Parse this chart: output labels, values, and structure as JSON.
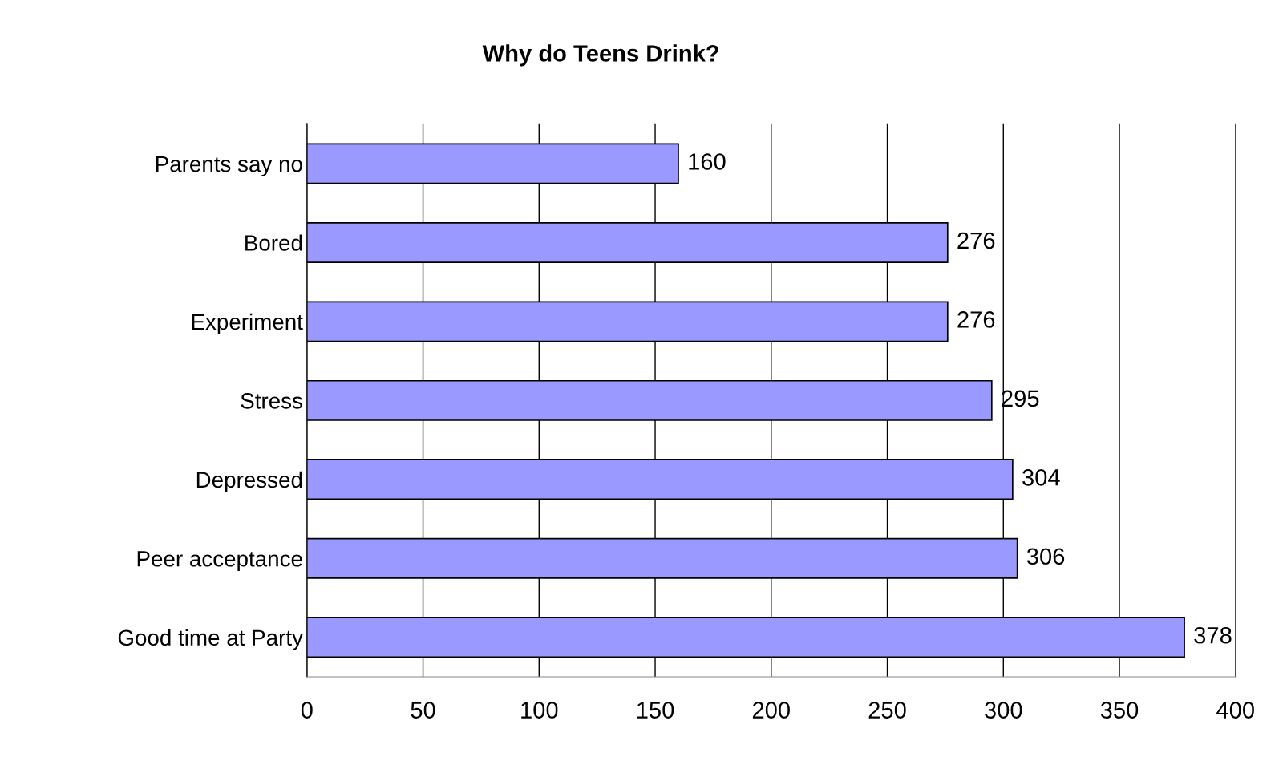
{
  "chart_data": {
    "type": "bar",
    "orientation": "horizontal",
    "title": "Why do Teens Drink?",
    "categories": [
      "Parents say no",
      "Bored",
      "Experiment",
      "Stress",
      "Depressed",
      "Peer acceptance",
      "Good time at Party"
    ],
    "values": [
      160,
      276,
      276,
      295,
      304,
      306,
      378
    ],
    "color": "#9999ff",
    "xlim": [
      0,
      400
    ],
    "xticks": [
      0,
      50,
      100,
      150,
      200,
      250,
      300,
      350,
      400
    ],
    "grid": "x",
    "data_labels": true
  }
}
